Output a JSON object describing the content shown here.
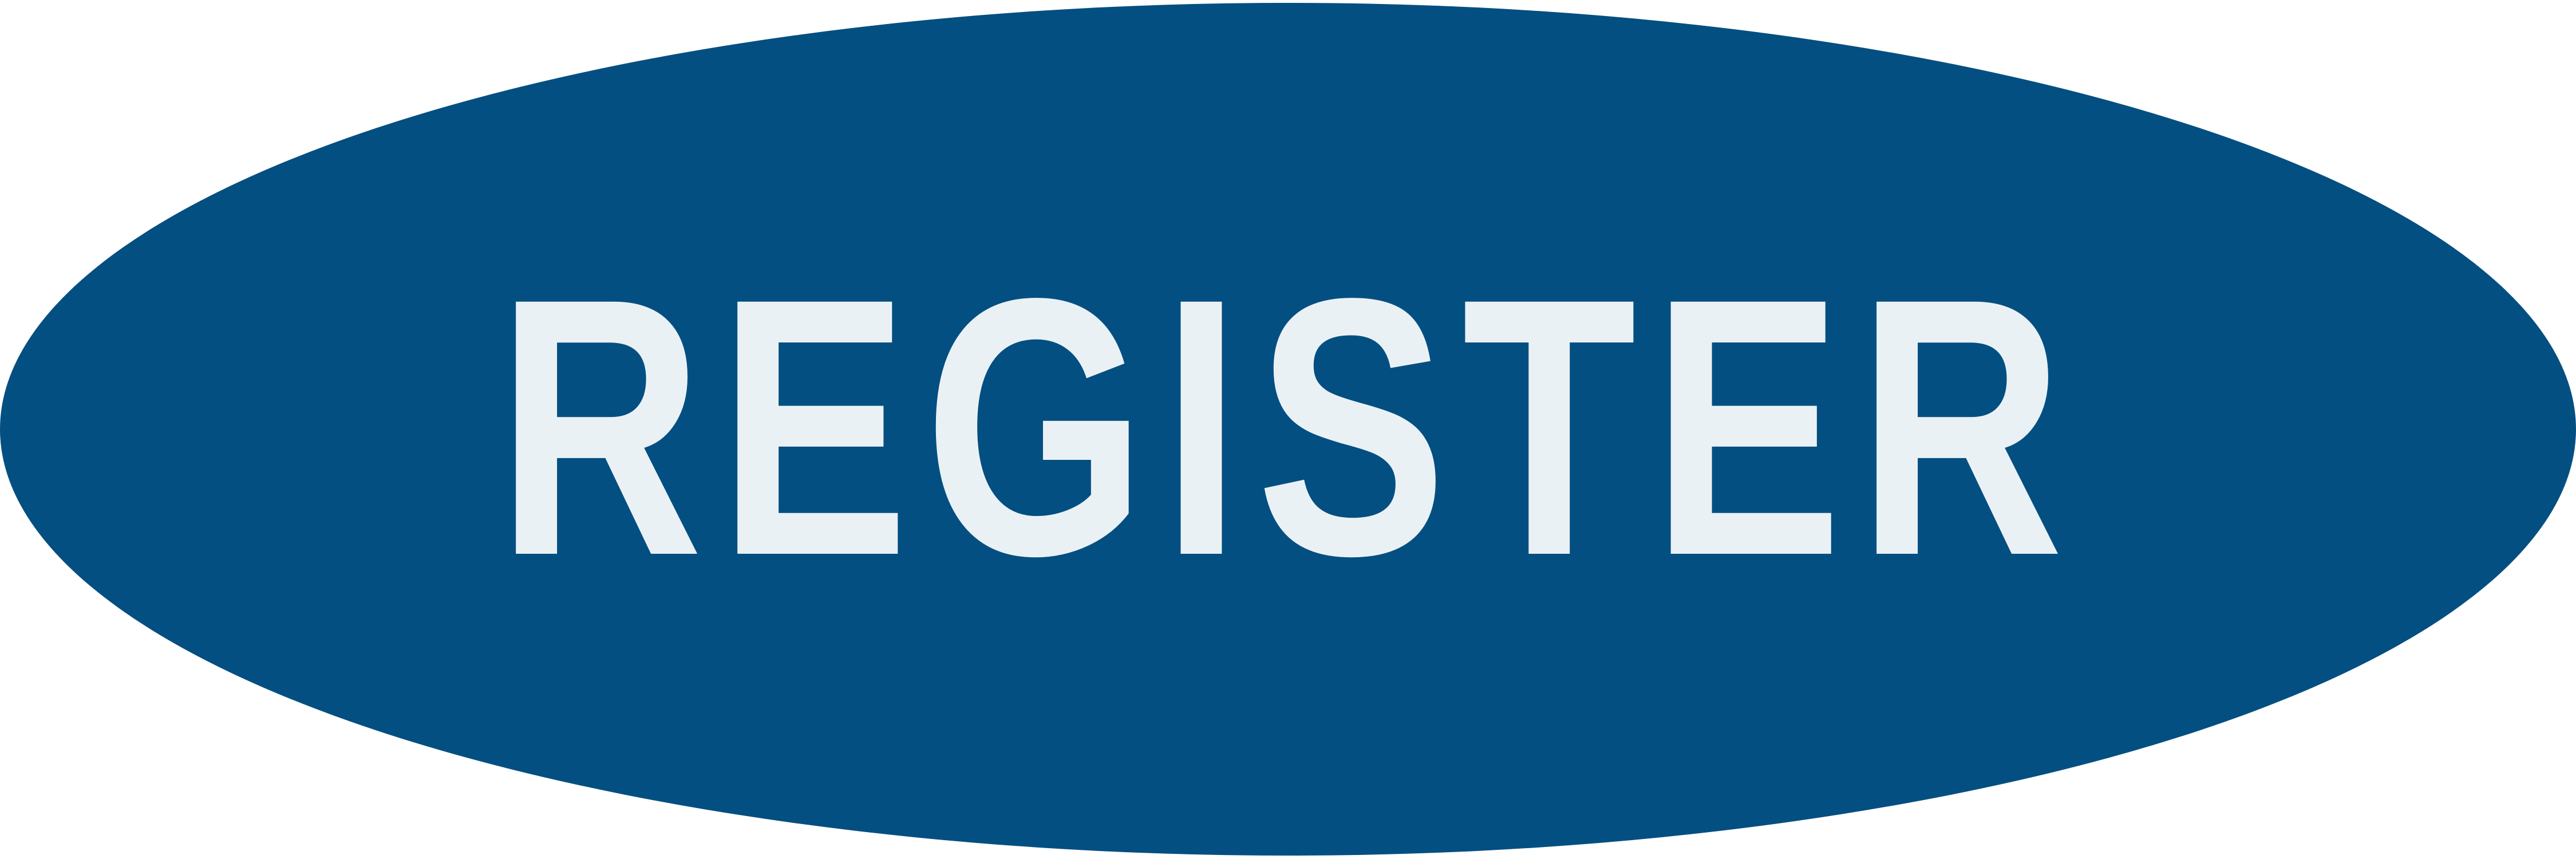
{
  "button": {
    "label": "REGISTER",
    "background_color": "#034f81",
    "text_color": "#eaf1f5"
  }
}
